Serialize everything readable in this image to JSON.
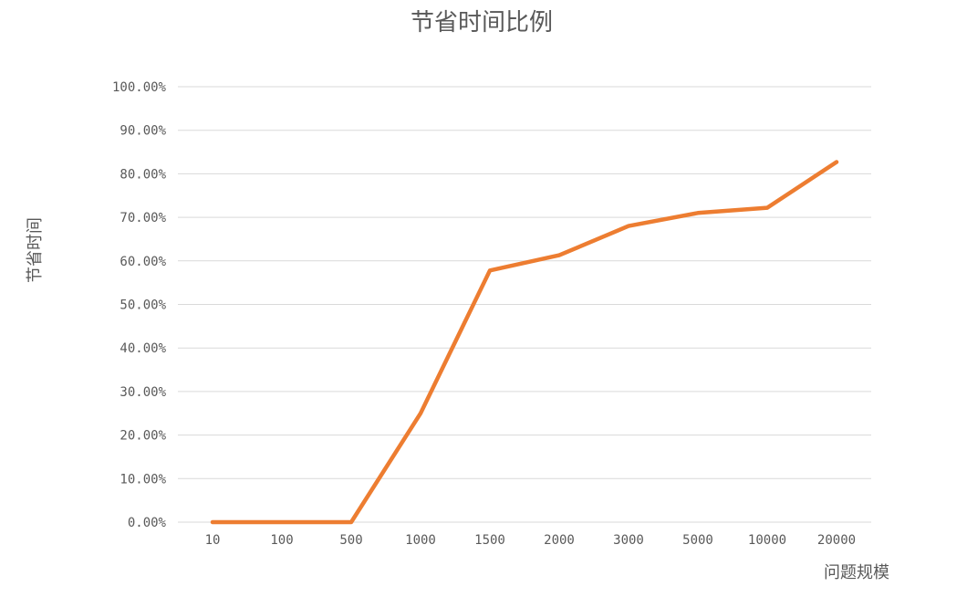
{
  "chart_data": {
    "type": "line",
    "title": "节省时间比例",
    "xlabel": "问题规模",
    "ylabel": "节省时间",
    "categories": [
      "10",
      "100",
      "500",
      "1000",
      "1500",
      "2000",
      "3000",
      "5000",
      "10000",
      "20000"
    ],
    "series": [
      {
        "values": [
          0.0,
          0.0,
          0.0,
          25.0,
          57.8,
          61.3,
          68.0,
          71.0,
          72.2,
          82.7
        ]
      }
    ],
    "ylim": [
      0,
      100
    ],
    "yticks": [
      "0.00%",
      "10.00%",
      "20.00%",
      "30.00%",
      "40.00%",
      "50.00%",
      "60.00%",
      "70.00%",
      "80.00%",
      "90.00%",
      "100.00%"
    ],
    "grid": "horizontal",
    "legend": "none",
    "colors": {
      "series": "#ed7d31",
      "grid": "#d9d9d9",
      "text": "#595959"
    }
  }
}
